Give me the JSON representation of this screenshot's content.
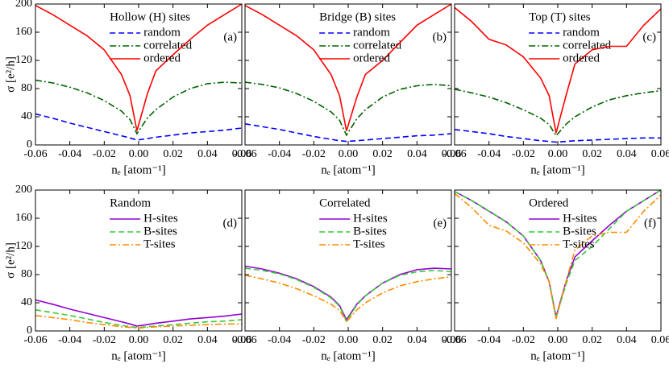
{
  "chart_data": [
    {
      "type": "line",
      "title": "Hollow (H) sites",
      "panel_label": "(a)",
      "ylabel": "σ [e²/h]",
      "xlabel": "nₑ [atom⁻¹]",
      "x": [
        -0.06,
        -0.05,
        -0.04,
        -0.03,
        -0.02,
        -0.01,
        -0.005,
        -0.001,
        0.005,
        0.01,
        0.02,
        0.03,
        0.04,
        0.05,
        0.06
      ],
      "series": [
        {
          "name": "random",
          "color": "#0000ff",
          "style": "dashed",
          "values": [
            44,
            38,
            31,
            25,
            19,
            13,
            10,
            7,
            9,
            11,
            14,
            17,
            19,
            21,
            24
          ]
        },
        {
          "name": "correlated",
          "color": "#006400",
          "style": "dashdot",
          "values": [
            92,
            88,
            82,
            74,
            63,
            48,
            36,
            16,
            38,
            50,
            68,
            80,
            87,
            89,
            88
          ]
        },
        {
          "name": "ordered",
          "color": "#ff0000",
          "style": "solid",
          "values": [
            198,
            185,
            170,
            155,
            135,
            100,
            70,
            20,
            72,
            105,
            128,
            150,
            170,
            185,
            200
          ]
        }
      ],
      "xlim": [
        -0.06,
        0.06
      ],
      "xticks": [
        -0.06,
        -0.04,
        -0.02,
        {
          "value": 0,
          "label": "0.00"
        },
        0.02,
        0.04,
        0.06
      ],
      "ylim": [
        0,
        200
      ],
      "yticks": [
        0,
        40,
        80,
        120,
        160,
        200
      ],
      "legend": "upper right"
    },
    {
      "type": "line",
      "title": "Bridge (B) sites",
      "panel_label": "(b)",
      "xlabel": "nₑ [atom⁻¹]",
      "x": [
        -0.06,
        -0.05,
        -0.04,
        -0.03,
        -0.02,
        -0.01,
        -0.005,
        -0.001,
        0.005,
        0.01,
        0.02,
        0.03,
        0.04,
        0.05,
        0.06
      ],
      "series": [
        {
          "name": "random",
          "color": "#0000ff",
          "style": "dashed",
          "values": [
            30,
            26,
            22,
            17,
            12,
            8,
            6,
            5,
            6,
            7,
            9,
            11,
            13,
            14,
            16
          ]
        },
        {
          "name": "correlated",
          "color": "#006400",
          "style": "dashdot",
          "values": [
            89,
            86,
            81,
            73,
            62,
            47,
            35,
            14,
            37,
            50,
            68,
            79,
            84,
            86,
            84
          ]
        },
        {
          "name": "ordered",
          "color": "#ff0000",
          "style": "solid",
          "values": [
            198,
            185,
            170,
            155,
            135,
            100,
            70,
            20,
            68,
            100,
            120,
            145,
            170,
            185,
            200
          ]
        }
      ],
      "xlim": [
        -0.06,
        0.06
      ],
      "xticks": [
        -0.06,
        -0.04,
        -0.02,
        {
          "value": 0,
          "label": "0.00"
        },
        0.02,
        0.04,
        0.06
      ],
      "ylim": [
        0,
        200
      ],
      "yticks": [
        0,
        40,
        80,
        120,
        160,
        200
      ],
      "legend": "upper right"
    },
    {
      "type": "line",
      "title": "Top (T) sites",
      "panel_label": "(c)",
      "xlabel": "nₑ [atom⁻¹]",
      "x": [
        -0.06,
        -0.05,
        -0.04,
        -0.03,
        -0.02,
        -0.01,
        -0.005,
        -0.001,
        0.005,
        0.01,
        0.02,
        0.03,
        0.04,
        0.05,
        0.06
      ],
      "series": [
        {
          "name": "random",
          "color": "#0000ff",
          "style": "dashed",
          "values": [
            22,
            19,
            16,
            12,
            9,
            6,
            5,
            4,
            5,
            6,
            7,
            8,
            9,
            10,
            10
          ]
        },
        {
          "name": "correlated",
          "color": "#006400",
          "style": "dashdot",
          "values": [
            79,
            74,
            68,
            60,
            50,
            38,
            29,
            13,
            30,
            40,
            54,
            64,
            70,
            74,
            77
          ]
        },
        {
          "name": "ordered",
          "color": "#ff0000",
          "style": "solid",
          "values": [
            195,
            175,
            150,
            142,
            125,
            95,
            70,
            17,
            72,
            115,
            135,
            140,
            140,
            170,
            193
          ]
        }
      ],
      "xlim": [
        -0.06,
        0.06
      ],
      "xticks": [
        -0.06,
        -0.04,
        -0.02,
        {
          "value": 0,
          "label": "0.00"
        },
        0.02,
        0.04,
        0.06
      ],
      "ylim": [
        0,
        200
      ],
      "yticks": [
        0,
        40,
        80,
        120,
        160,
        200
      ],
      "legend": "upper right"
    },
    {
      "type": "line",
      "title": "Random",
      "panel_label": "(d)",
      "ylabel": "σ [e²/h]",
      "xlabel": "nₑ [atom⁻¹]",
      "x": [
        -0.06,
        -0.05,
        -0.04,
        -0.03,
        -0.02,
        -0.01,
        -0.005,
        -0.001,
        0.005,
        0.01,
        0.02,
        0.03,
        0.04,
        0.05,
        0.06
      ],
      "series": [
        {
          "name": "H-sites",
          "color": "#9400d3",
          "style": "solid",
          "values": [
            44,
            38,
            31,
            25,
            19,
            13,
            10,
            7,
            9,
            11,
            14,
            17,
            19,
            21,
            24
          ]
        },
        {
          "name": "B-sites",
          "color": "#33cc33",
          "style": "dashed",
          "values": [
            30,
            26,
            22,
            17,
            12,
            8,
            6,
            5,
            6,
            7,
            9,
            11,
            13,
            14,
            16
          ]
        },
        {
          "name": "T-sites",
          "color": "#ff8c00",
          "style": "dashdot",
          "values": [
            22,
            19,
            16,
            12,
            9,
            6,
            5,
            4,
            5,
            6,
            7,
            8,
            9,
            10,
            10
          ]
        }
      ],
      "xlim": [
        -0.06,
        0.06
      ],
      "xticks": [
        -0.06,
        -0.04,
        -0.02,
        {
          "value": 0,
          "label": "0.00"
        },
        0.02,
        0.04,
        0.06
      ],
      "ylim": [
        0,
        200
      ],
      "yticks": [
        0,
        40,
        80,
        120,
        160,
        200
      ],
      "legend": "upper right"
    },
    {
      "type": "line",
      "title": "Correlated",
      "panel_label": "(e)",
      "xlabel": "nₑ [atom⁻¹]",
      "x": [
        -0.06,
        -0.05,
        -0.04,
        -0.03,
        -0.02,
        -0.01,
        -0.005,
        -0.001,
        0.005,
        0.01,
        0.02,
        0.03,
        0.04,
        0.05,
        0.06
      ],
      "series": [
        {
          "name": "H-sites",
          "color": "#9400d3",
          "style": "solid",
          "values": [
            92,
            88,
            82,
            74,
            63,
            48,
            36,
            16,
            38,
            50,
            68,
            80,
            87,
            89,
            88
          ]
        },
        {
          "name": "B-sites",
          "color": "#33cc33",
          "style": "dashed",
          "values": [
            89,
            86,
            81,
            73,
            62,
            47,
            35,
            14,
            37,
            50,
            68,
            79,
            84,
            86,
            84
          ]
        },
        {
          "name": "T-sites",
          "color": "#ff8c00",
          "style": "dashdot",
          "values": [
            79,
            74,
            68,
            60,
            50,
            38,
            29,
            13,
            30,
            40,
            54,
            64,
            70,
            74,
            77
          ]
        }
      ],
      "xlim": [
        -0.06,
        0.06
      ],
      "xticks": [
        -0.06,
        -0.04,
        -0.02,
        {
          "value": 0,
          "label": "0.00"
        },
        0.02,
        0.04,
        0.06
      ],
      "ylim": [
        0,
        200
      ],
      "yticks": [
        0,
        40,
        80,
        120,
        160,
        200
      ],
      "legend": "upper right"
    },
    {
      "type": "line",
      "title": "Ordered",
      "panel_label": "(f)",
      "xlabel": "nₑ [atom⁻¹]",
      "x": [
        -0.06,
        -0.05,
        -0.04,
        -0.03,
        -0.02,
        -0.01,
        -0.005,
        -0.001,
        0.005,
        0.01,
        0.02,
        0.03,
        0.04,
        0.05,
        0.06
      ],
      "series": [
        {
          "name": "H-sites",
          "color": "#9400d3",
          "style": "solid",
          "values": [
            198,
            185,
            170,
            155,
            135,
            100,
            70,
            20,
            72,
            105,
            128,
            150,
            170,
            185,
            200
          ]
        },
        {
          "name": "B-sites",
          "color": "#33cc33",
          "style": "dashed",
          "values": [
            198,
            185,
            170,
            155,
            135,
            100,
            70,
            20,
            68,
            100,
            120,
            145,
            170,
            185,
            200
          ]
        },
        {
          "name": "T-sites",
          "color": "#ff8c00",
          "style": "dashdot",
          "values": [
            195,
            175,
            150,
            142,
            125,
            95,
            70,
            17,
            72,
            115,
            135,
            140,
            140,
            170,
            193
          ]
        }
      ],
      "xlim": [
        -0.06,
        0.06
      ],
      "xticks": [
        -0.06,
        -0.04,
        -0.02,
        {
          "value": 0,
          "label": "0.00"
        },
        0.02,
        0.04,
        0.06
      ],
      "ylim": [
        0,
        200
      ],
      "yticks": [
        0,
        40,
        80,
        120,
        160,
        200
      ],
      "legend": "upper right"
    }
  ]
}
